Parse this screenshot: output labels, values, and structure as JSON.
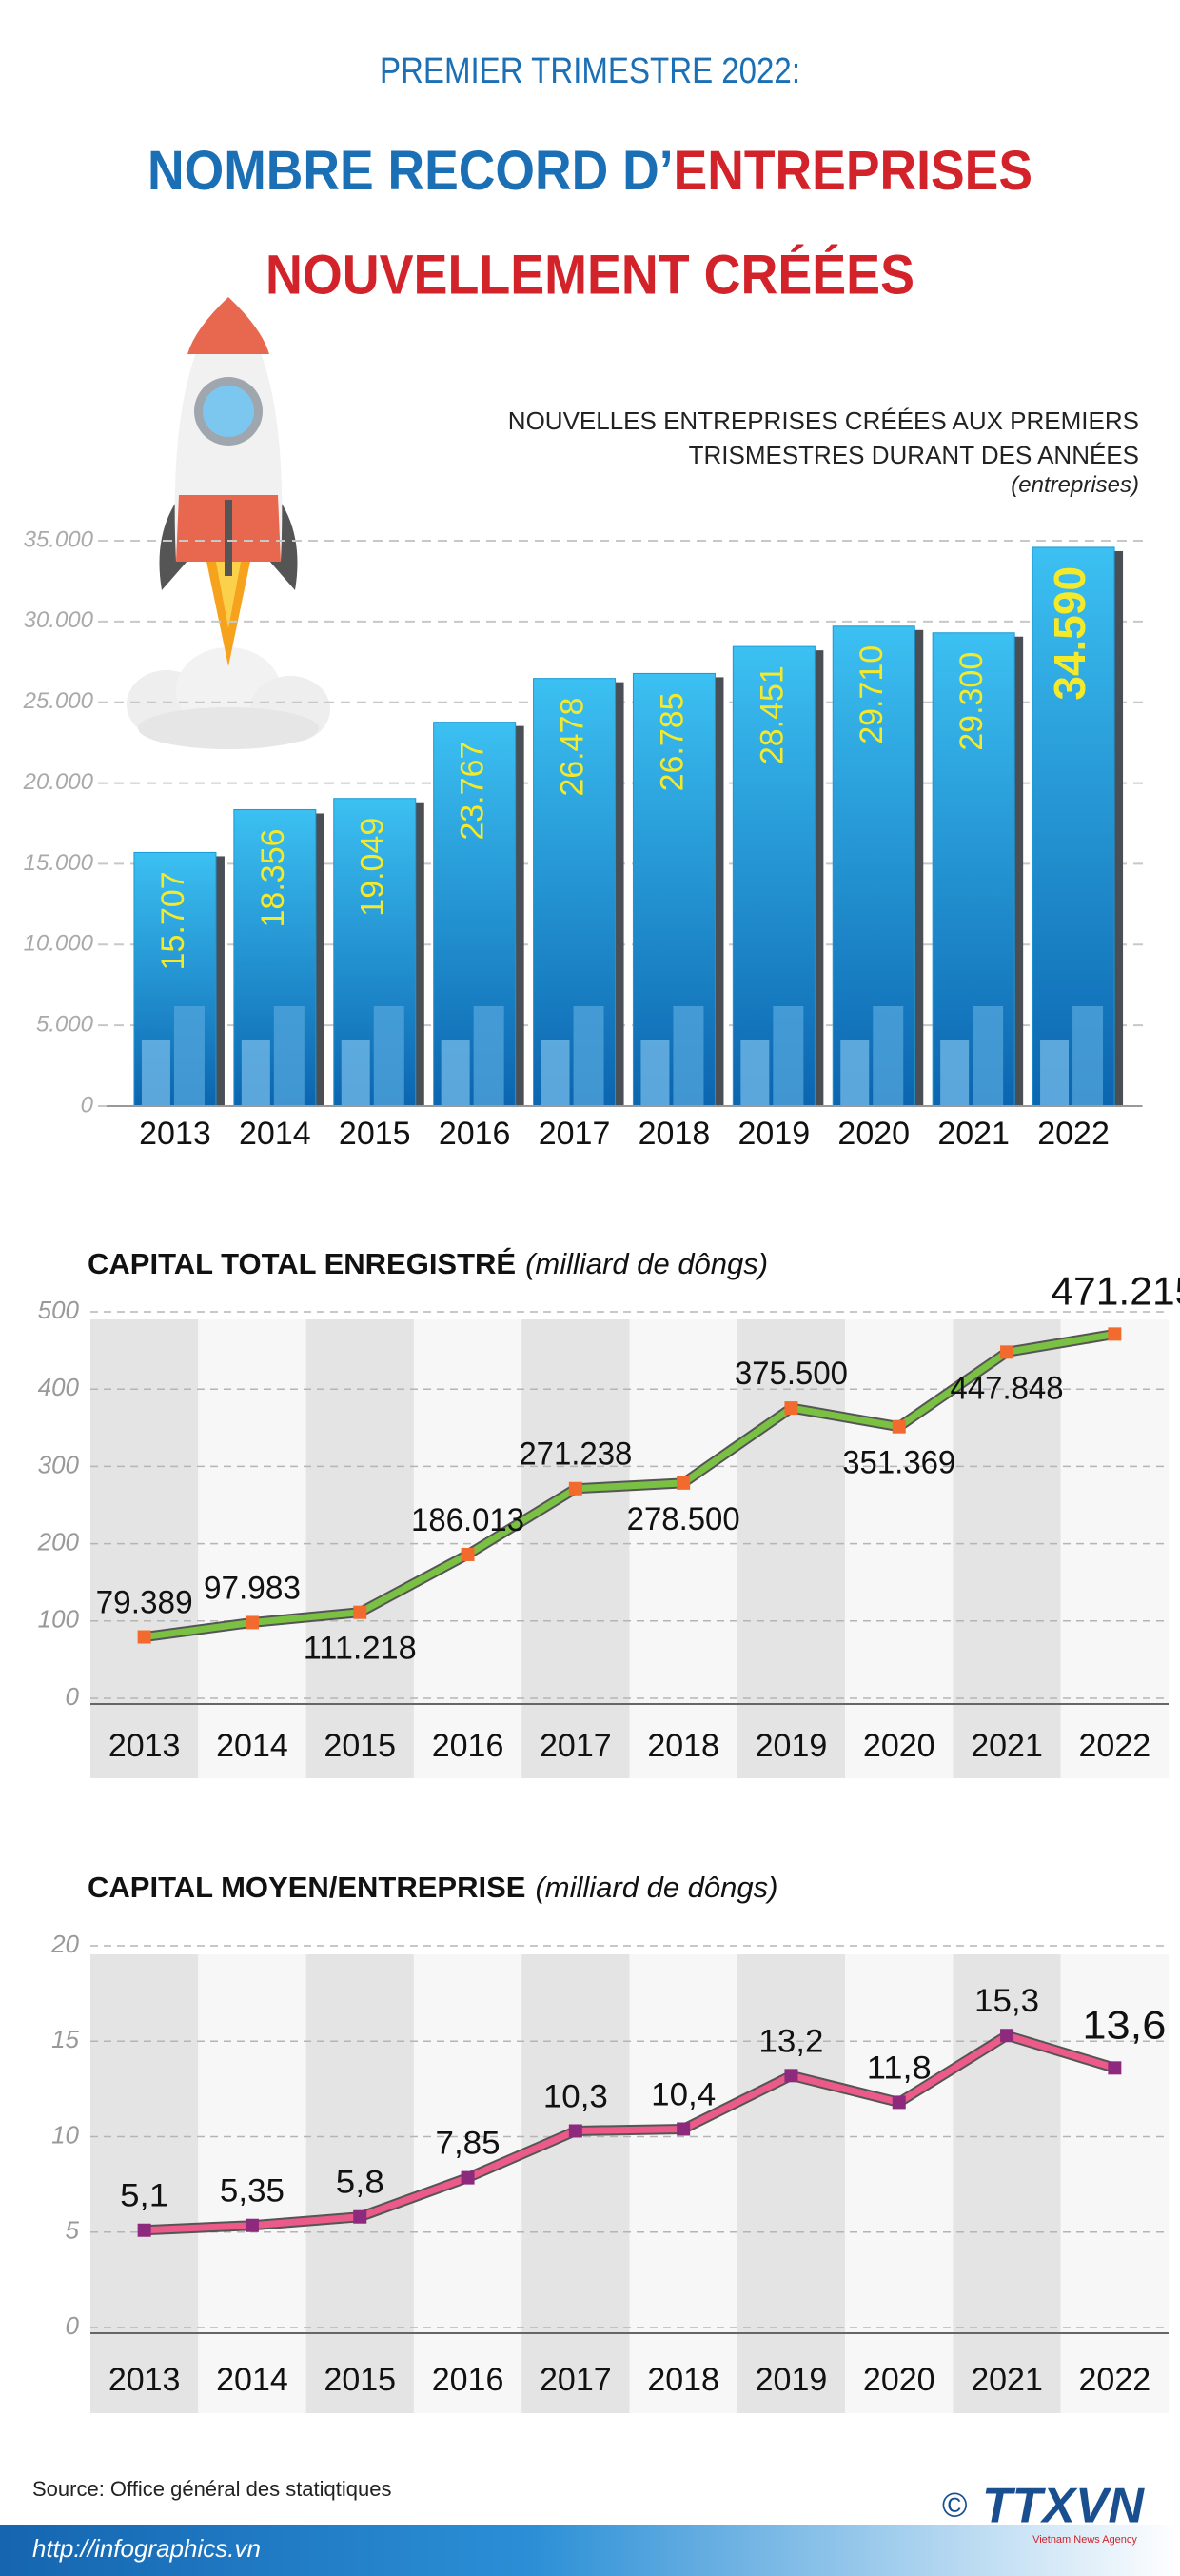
{
  "header": {
    "kicker": "PREMIER TRIMESTRE 2022:",
    "title_part1": "NOMBRE RECORD D’",
    "title_part2": "ENTREPRISES",
    "title_line2": "NOUVELLEMENT CRÉÉES"
  },
  "chart_data": [
    {
      "type": "bar",
      "title": "NOUVELLES ENTREPRISES CRÉÉES AUX PREMIERS TRISMESTRES DURANT DES ANNÉES",
      "subtitle": "(entreprises)",
      "categories": [
        "2013",
        "2014",
        "2015",
        "2016",
        "2017",
        "2018",
        "2019",
        "2020",
        "2021",
        "2022"
      ],
      "values": [
        15707,
        18356,
        19049,
        23767,
        26478,
        26785,
        28451,
        29710,
        29300,
        34590
      ],
      "value_labels": [
        "15.707",
        "18.356",
        "19.049",
        "23.767",
        "26.478",
        "26.785",
        "28.451",
        "29.710",
        "29.300",
        "34.590"
      ],
      "color": "#1a9ad6",
      "label_color": "#f4ea2a",
      "ylim": [
        0,
        35000
      ],
      "yticks": [
        0,
        {
          "value": 5000,
          "label": "5.000"
        },
        {
          "value": 10000,
          "label": "10.000"
        },
        {
          "value": 15000,
          "label": "15.000"
        },
        {
          "value": 20000,
          "label": "20.000"
        },
        {
          "value": 25000,
          "label": "25.000"
        },
        {
          "value": 30000,
          "label": "30.000"
        },
        {
          "value": 35000,
          "label": "35.000"
        }
      ],
      "grid": true
    },
    {
      "type": "line",
      "title": "CAPITAL TOTAL ENREGISTRÉ",
      "subtitle": "(milliard de dôngs)",
      "categories": [
        "2013",
        "2014",
        "2015",
        "2016",
        "2017",
        "2018",
        "2019",
        "2020",
        "2021",
        "2022"
      ],
      "values": [
        79.389,
        97.983,
        111.218,
        186.013,
        271.238,
        278.5,
        375.5,
        351.369,
        447.848,
        471.215
      ],
      "value_labels": [
        "79.389",
        "97.983",
        "111.218",
        "186.013",
        "271.238",
        "278.500",
        "375.500",
        "351.369",
        "447.848",
        "471.215"
      ],
      "color": "#7ac143",
      "marker_color": "#f26a2e",
      "ylim": [
        0,
        500
      ],
      "yticks": [
        0,
        100,
        200,
        300,
        400,
        500
      ],
      "grid": true
    },
    {
      "type": "line",
      "title": "CAPITAL MOYEN/ENTREPRISE",
      "subtitle": "(milliard de dôngs)",
      "categories": [
        "2013",
        "2014",
        "2015",
        "2016",
        "2017",
        "2018",
        "2019",
        "2020",
        "2021",
        "2022"
      ],
      "values": [
        5.1,
        5.35,
        5.8,
        7.85,
        10.3,
        10.4,
        13.2,
        11.8,
        15.3,
        13.6
      ],
      "value_labels": [
        "5,1",
        "5,35",
        "5,8",
        "7,85",
        "10,3",
        "10,4",
        "13,2",
        "11,8",
        "15,3",
        "13,6"
      ],
      "color": "#ec5a8a",
      "marker_color": "#8e2a7e",
      "ylim": [
        0,
        20
      ],
      "yticks": [
        0,
        5,
        10,
        15,
        20
      ],
      "grid": true
    }
  ],
  "footer": {
    "source": "Source: Office général des statiqtiques",
    "url": "http://infographics.vn",
    "copyright": "©",
    "logo": "TTXVN",
    "logo_sub": "Vietnam News Agency"
  }
}
